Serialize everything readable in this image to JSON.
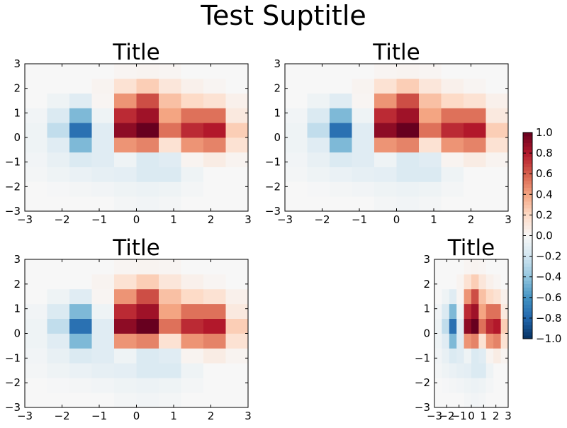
{
  "figure": {
    "suptitle": "Test Suptitle"
  },
  "chart_data": {
    "type": "heatmap",
    "suptitle": "Test Suptitle",
    "colormap": "RdBu_r",
    "x_edges": [
      -3,
      -2.4,
      -1.8,
      -1.2,
      -0.6,
      0,
      0.6,
      1.2,
      1.8,
      2.4,
      3
    ],
    "y_edges": [
      -3,
      -2.4,
      -1.8,
      -1.2,
      -0.6,
      0,
      0.6,
      1.2,
      1.8,
      2.4,
      3
    ],
    "z": [
      [
        0.0,
        0.0,
        0.0,
        0.0,
        -0.02,
        -0.03,
        -0.02,
        0.0,
        0.0,
        0.0
      ],
      [
        0.0,
        -0.01,
        -0.02,
        -0.03,
        -0.05,
        -0.06,
        -0.05,
        -0.02,
        0.0,
        0.0
      ],
      [
        -0.02,
        -0.05,
        -0.07,
        -0.09,
        -0.1,
        -0.15,
        -0.15,
        -0.05,
        0.0,
        0.0
      ],
      [
        -0.03,
        -0.08,
        -0.15,
        -0.12,
        -0.05,
        -0.15,
        -0.12,
        0.03,
        0.08,
        0.03
      ],
      [
        -0.05,
        -0.12,
        -0.45,
        -0.12,
        0.45,
        0.5,
        0.15,
        0.45,
        0.5,
        0.15
      ],
      [
        -0.05,
        -0.25,
        -0.75,
        -0.12,
        0.9,
        1.0,
        0.55,
        0.75,
        0.8,
        0.25
      ],
      [
        -0.03,
        -0.15,
        -0.45,
        -0.05,
        0.75,
        0.85,
        0.4,
        0.55,
        0.55,
        0.1
      ],
      [
        0.0,
        -0.05,
        -0.12,
        0.02,
        0.45,
        0.65,
        0.3,
        0.2,
        0.15,
        0.05
      ],
      [
        0.0,
        0.0,
        0.0,
        0.03,
        0.15,
        0.25,
        0.12,
        0.05,
        0.02,
        0.0
      ],
      [
        0.0,
        0.0,
        0.0,
        0.0,
        0.02,
        0.03,
        0.02,
        0.0,
        0.0,
        0.0
      ]
    ],
    "axes": [
      {
        "title": "Title",
        "xlim": [
          -3,
          3
        ],
        "ylim": [
          -3,
          3
        ],
        "xticks": [
          -3,
          -2,
          -1,
          0,
          1,
          2,
          3
        ],
        "yticks": [
          -3,
          -2,
          -1,
          0,
          1,
          2,
          3
        ],
        "xtick_labels": [
          "−3",
          "−2",
          "−1",
          "0",
          "1",
          "2",
          "3"
        ],
        "ytick_labels": [
          "−3",
          "−2",
          "−1",
          "0",
          "1",
          "2",
          "3"
        ]
      },
      {
        "title": "Title",
        "xlim": [
          -3,
          3
        ],
        "ylim": [
          -3,
          3
        ],
        "xticks": [
          -3,
          -2,
          -1,
          0,
          1,
          2,
          3
        ],
        "yticks": [
          -3,
          -2,
          -1,
          0,
          1,
          2,
          3
        ],
        "xtick_labels": [
          "−3",
          "−2",
          "−1",
          "0",
          "1",
          "2",
          "3"
        ],
        "ytick_labels": [
          "−3",
          "−2",
          "−1",
          "0",
          "1",
          "2",
          "3"
        ]
      },
      {
        "title": "Title",
        "xlim": [
          -3,
          3
        ],
        "ylim": [
          -3,
          3
        ],
        "xticks": [
          -3,
          -2,
          -1,
          0,
          1,
          2,
          3
        ],
        "yticks": [
          -3,
          -2,
          -1,
          0,
          1,
          2,
          3
        ],
        "xtick_labels": [
          "−3",
          "−2",
          "−1",
          "0",
          "1",
          "2",
          "3"
        ],
        "ytick_labels": [
          "−3",
          "−2",
          "−1",
          "0",
          "1",
          "2",
          "3"
        ]
      },
      {
        "title": "Title",
        "xlim": [
          -3,
          3
        ],
        "ylim": [
          -3,
          3
        ],
        "xticks": [
          -3,
          -2,
          -1,
          0,
          1,
          2,
          3
        ],
        "yticks": [
          -3,
          -2,
          -1,
          0,
          1,
          2,
          3
        ],
        "xtick_labels": [
          "−3",
          "−2",
          "−1",
          "0",
          "1",
          "2",
          "3"
        ],
        "ytick_labels": [
          "−3",
          "−2",
          "−1",
          "0",
          "1",
          "2",
          "3"
        ]
      }
    ],
    "colorbar": {
      "vmin": -1.0,
      "vmax": 1.0,
      "ticks": [
        -1.0,
        -0.8,
        -0.6,
        -0.4,
        -0.2,
        0.0,
        0.2,
        0.4,
        0.6,
        0.8,
        1.0
      ],
      "tick_labels": [
        "−1.0",
        "−0.8",
        "−0.6",
        "−0.4",
        "−0.2",
        "0.0",
        "0.2",
        "0.4",
        "0.6",
        "0.8",
        "1.0"
      ]
    }
  }
}
